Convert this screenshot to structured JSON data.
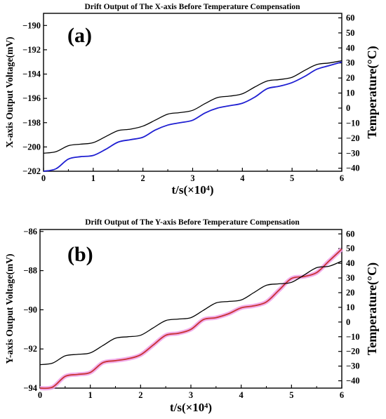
{
  "chart_data": [
    {
      "type": "line",
      "panel_label": "(a)",
      "title": "Drift Output of The X-axis Before Temperature Compensation",
      "xlabel": "t/s(×10⁴)",
      "ylabel": "X-axis Output Voltage(mV)",
      "ylabel_color": "#000000",
      "y2label": "Temperature(°C)",
      "xlim": [
        0,
        6
      ],
      "ylim": [
        -202,
        -189
      ],
      "y2lim": [
        -42,
        63
      ],
      "x_ticks": [
        "0",
        "1",
        "2",
        "3",
        "4",
        "5",
        "6"
      ],
      "y_ticks": [
        "-190",
        "-192",
        "-194",
        "-196",
        "-198",
        "-200",
        "-202"
      ],
      "y2_ticks": [
        "60",
        "50",
        "40",
        "30",
        "20",
        "10",
        "0",
        "-10",
        "-20",
        "-30",
        "-40"
      ],
      "series": [
        {
          "axis": "left",
          "color": "#1f1fd2",
          "x": [
            0,
            0.25,
            0.5,
            0.75,
            1.0,
            1.25,
            1.5,
            1.75,
            2.0,
            2.25,
            2.5,
            2.75,
            3.0,
            3.25,
            3.5,
            3.75,
            4.0,
            4.25,
            4.5,
            4.75,
            5.0,
            5.25,
            5.5,
            5.75,
            6.0
          ],
          "values": [
            -202.0,
            -201.8,
            -201.0,
            -200.8,
            -200.7,
            -200.2,
            -199.6,
            -199.4,
            -199.2,
            -198.6,
            -198.2,
            -198.0,
            -197.8,
            -197.2,
            -196.8,
            -196.6,
            -196.4,
            -195.9,
            -195.2,
            -195.0,
            -194.7,
            -194.2,
            -193.6,
            -193.3,
            -193.0
          ]
        },
        {
          "axis": "right",
          "color": "#000000",
          "x": [
            0,
            0.25,
            0.5,
            0.75,
            1.0,
            1.25,
            1.5,
            1.75,
            2.0,
            2.25,
            2.5,
            2.75,
            3.0,
            3.25,
            3.5,
            3.75,
            4.0,
            4.25,
            4.5,
            4.75,
            5.0,
            5.25,
            5.5,
            5.75,
            6.0
          ],
          "values": [
            -30.0,
            -29.0,
            -25.0,
            -24.0,
            -23.0,
            -19.0,
            -15.0,
            -14.0,
            -12.0,
            -8.0,
            -4.0,
            -3.0,
            -1.5,
            3.0,
            7.0,
            8.0,
            9.5,
            14.0,
            18.0,
            19.0,
            20.5,
            25.0,
            29.0,
            30.0,
            31.5
          ]
        }
      ]
    },
    {
      "type": "line",
      "panel_label": "(b)",
      "title": "Drift Output of The Y-axis Before Temperature Compensation",
      "xlabel": "t/s(×10⁴)",
      "ylabel": "Y-axis Output Voltage(mV)",
      "ylabel_color": "#8b1a1a",
      "y2label": "Temperature(°C)",
      "xlim": [
        0,
        6
      ],
      "ylim": [
        -94,
        -85.9
      ],
      "y2lim": [
        -45,
        63
      ],
      "x_ticks": [
        "0",
        "1",
        "2",
        "3",
        "4",
        "5",
        "6"
      ],
      "y_ticks": [
        "-86",
        "-88",
        "-90",
        "-92",
        "-94"
      ],
      "y2_ticks": [
        "60",
        "50",
        "40",
        "30",
        "20",
        "10",
        "0",
        "-10",
        "-20",
        "-30",
        "-40"
      ],
      "series": [
        {
          "axis": "left",
          "color": "#c83232",
          "band_color": "#f0a0e8",
          "x": [
            0,
            0.25,
            0.5,
            0.75,
            1.0,
            1.25,
            1.5,
            1.75,
            2.0,
            2.25,
            2.5,
            2.75,
            3.0,
            3.25,
            3.5,
            3.75,
            4.0,
            4.25,
            4.5,
            4.75,
            5.0,
            5.25,
            5.5,
            5.75,
            6.0
          ],
          "values": [
            -94.0,
            -93.95,
            -93.4,
            -93.3,
            -93.2,
            -92.7,
            -92.6,
            -92.5,
            -92.3,
            -91.8,
            -91.3,
            -91.2,
            -91.0,
            -90.5,
            -90.4,
            -90.2,
            -89.9,
            -89.8,
            -89.6,
            -89.0,
            -88.4,
            -88.3,
            -88.1,
            -87.5,
            -86.9
          ]
        },
        {
          "axis": "right",
          "color": "#000000",
          "x": [
            0,
            0.25,
            0.5,
            0.75,
            1.0,
            1.25,
            1.5,
            1.75,
            2.0,
            2.25,
            2.5,
            2.75,
            3.0,
            3.25,
            3.5,
            3.75,
            4.0,
            4.25,
            4.5,
            4.75,
            5.0,
            5.25,
            5.5,
            5.75,
            6.0
          ],
          "values": [
            -29.0,
            -28.0,
            -23.0,
            -22.0,
            -21.0,
            -16.0,
            -11.0,
            -10.0,
            -9.0,
            -4.0,
            1.0,
            2.0,
            3.0,
            8.0,
            13.0,
            14.0,
            15.0,
            20.0,
            25.0,
            26.0,
            27.0,
            32.0,
            37.0,
            38.0,
            41.5
          ]
        }
      ]
    }
  ]
}
